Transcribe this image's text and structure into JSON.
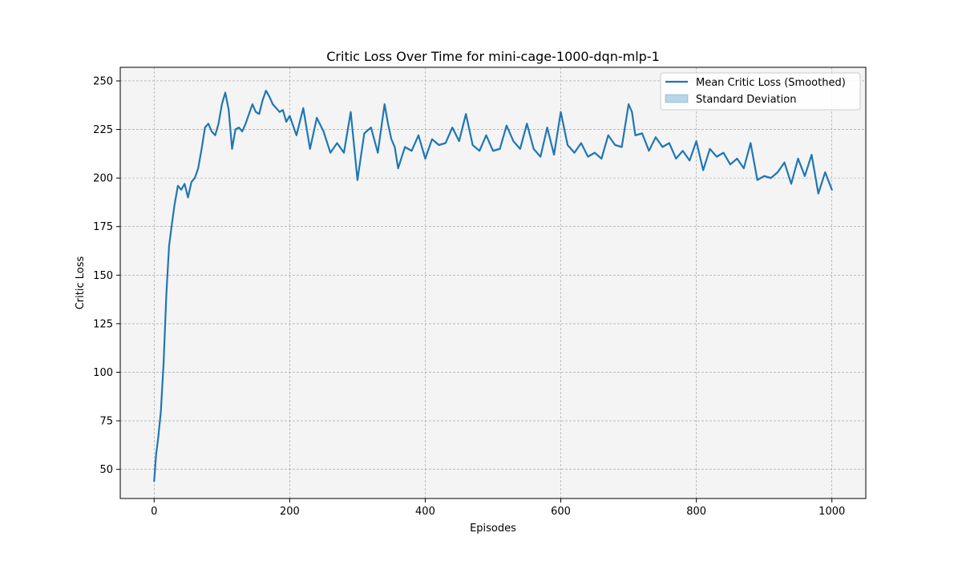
{
  "chart_data": {
    "type": "line",
    "title": "Critic Loss Over Time for mini-cage-1000-dqn-mlp-1",
    "xlabel": "Episodes",
    "ylabel": "Critic Loss",
    "xlim": [
      -50,
      1050
    ],
    "ylim": [
      35,
      257
    ],
    "x_ticks": [
      0,
      200,
      400,
      600,
      800,
      1000
    ],
    "y_ticks": [
      50,
      75,
      100,
      125,
      150,
      175,
      200,
      225,
      250
    ],
    "grid": true,
    "legend_position": "top-right",
    "colors": {
      "line": "#1f77b4",
      "band": "#1f77b4",
      "plot_bg": "#f4f4f4",
      "grid": "#9a9a9a"
    },
    "series": [
      {
        "name": "Mean Critic Loss (Smoothed)",
        "x": [
          0,
          3,
          6,
          10,
          14,
          18,
          22,
          26,
          30,
          35,
          40,
          45,
          50,
          55,
          60,
          65,
          70,
          75,
          80,
          85,
          90,
          95,
          100,
          105,
          110,
          115,
          120,
          125,
          130,
          135,
          140,
          145,
          150,
          155,
          160,
          165,
          170,
          175,
          180,
          185,
          190,
          195,
          200,
          210,
          220,
          230,
          240,
          250,
          260,
          270,
          280,
          290,
          300,
          310,
          320,
          330,
          340,
          345,
          350,
          355,
          360,
          370,
          380,
          390,
          400,
          410,
          420,
          430,
          440,
          450,
          460,
          470,
          480,
          490,
          500,
          510,
          520,
          530,
          540,
          550,
          560,
          570,
          580,
          590,
          600,
          610,
          620,
          630,
          640,
          650,
          660,
          670,
          680,
          690,
          700,
          705,
          710,
          720,
          730,
          740,
          750,
          760,
          770,
          780,
          790,
          800,
          810,
          820,
          830,
          840,
          850,
          860,
          870,
          880,
          890,
          900,
          910,
          920,
          930,
          940,
          950,
          960,
          970,
          980,
          990,
          1000
        ],
        "values": [
          44,
          58,
          66,
          80,
          105,
          140,
          165,
          176,
          186,
          196,
          194,
          197,
          190,
          198,
          200,
          205,
          215,
          226,
          228,
          224,
          222,
          228,
          238,
          244,
          235,
          215,
          225,
          226,
          224,
          228,
          233,
          238,
          234,
          233,
          240,
          245,
          242,
          238,
          236,
          234,
          235,
          229,
          232,
          222,
          236,
          215,
          231,
          224,
          213,
          218,
          213,
          234,
          199,
          223,
          226,
          213,
          238,
          228,
          220,
          216,
          205,
          216,
          214,
          222,
          210,
          220,
          217,
          218,
          226,
          219,
          233,
          217,
          214,
          222,
          214,
          215,
          227,
          219,
          215,
          228,
          215,
          211,
          226,
          212,
          234,
          217,
          213,
          218,
          211,
          213,
          210,
          222,
          217,
          216,
          238,
          234,
          222,
          223,
          214,
          221,
          216,
          218,
          210,
          214,
          209,
          219,
          204,
          215,
          211,
          213,
          207,
          210,
          205,
          218,
          199,
          201,
          200,
          203,
          208,
          197,
          210,
          201,
          212,
          192,
          203,
          194
        ],
        "color": "#1f77b4"
      },
      {
        "name": "Standard Deviation",
        "type": "band",
        "color": "#1f77b4"
      }
    ]
  }
}
